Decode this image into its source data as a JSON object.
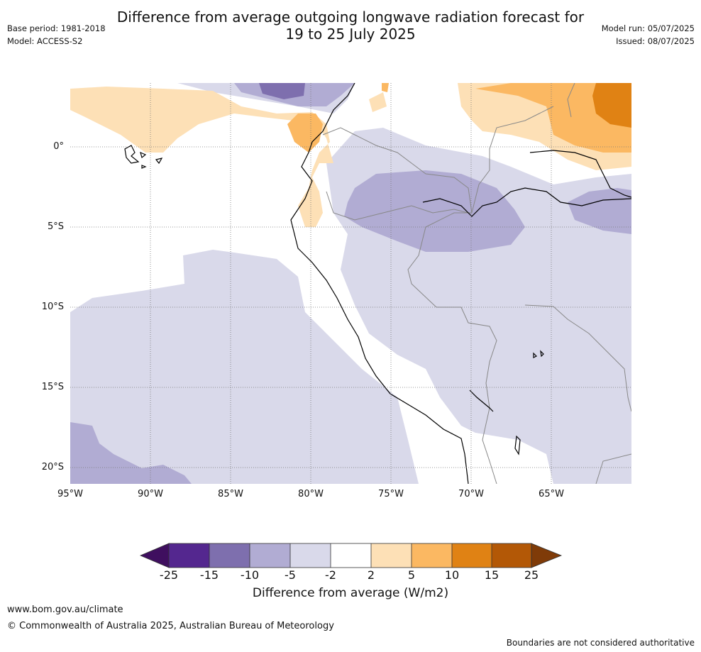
{
  "title_line1": "Difference from average outgoing longwave radiation forecast for",
  "title_line2": "19 to 25 July 2025",
  "meta_left": {
    "base_period": "Base period: 1981-2018",
    "model": "Model: ACCESS-S2"
  },
  "meta_right": {
    "model_run": "Model run: 05/07/2025",
    "issued": "Issued: 08/07/2025"
  },
  "map": {
    "lat_labels": [
      "0°",
      "5°S",
      "10°S",
      "15°S",
      "20°S"
    ],
    "lon_labels": [
      "95°W",
      "90°W",
      "85°W",
      "80°W",
      "75°W",
      "70°W",
      "65°W"
    ]
  },
  "colorbar": {
    "ticks": [
      "-25",
      "-15",
      "-10",
      "-5",
      "-2",
      "2",
      "5",
      "10",
      "15",
      "25"
    ],
    "colors": [
      "#3f0f5f",
      "#54278f",
      "#7e6fae",
      "#b1acd3",
      "#d9d9ea",
      "#ffffff",
      "#fde0b6",
      "#fbb862",
      "#e08214",
      "#b35806",
      "#7f3b08"
    ],
    "label": "Difference from average (W/m2)"
  },
  "footer": {
    "website": "www.bom.gov.au/climate",
    "copyright": "© Commonwealth of Australia 2025, Australian Bureau of Meteorology",
    "disclaimer": "Boundaries are not considered authoritative"
  }
}
